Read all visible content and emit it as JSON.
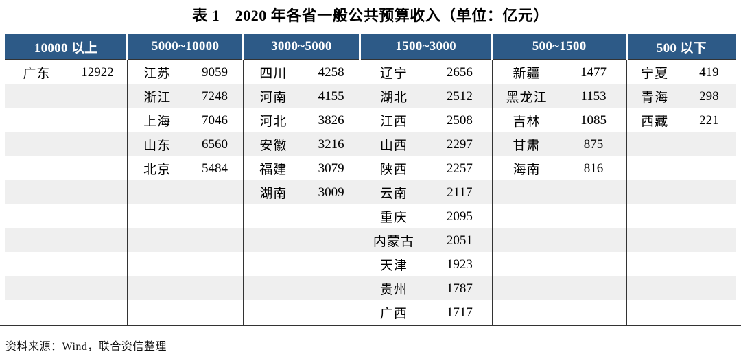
{
  "page": {
    "title": "表 1　2020 年各省一般公共预算收入（单位：亿元）",
    "source_note": "资料来源：Wind，联合资信整理"
  },
  "colors": {
    "header_bg": "#2d5a87",
    "header_text": "#ffffff",
    "alt_row_bg": "#efefef",
    "rule": "#333333"
  },
  "chart_data": {
    "type": "table",
    "title": "2020 年各省一般公共预算收入",
    "table_label": "表 1",
    "unit": "亿元",
    "row_count": 11,
    "column_headers": [
      "10000 以上",
      "5000~10000",
      "3000~5000",
      "1500~3000",
      "500~1500",
      "500 以下"
    ],
    "groups": [
      {
        "header": "10000 以上",
        "rows": [
          [
            "广东",
            "12922"
          ]
        ]
      },
      {
        "header": "5000~10000",
        "rows": [
          [
            "江苏",
            "9059"
          ],
          [
            "浙江",
            "7248"
          ],
          [
            "上海",
            "7046"
          ],
          [
            "山东",
            "6560"
          ],
          [
            "北京",
            "5484"
          ]
        ]
      },
      {
        "header": "3000~5000",
        "rows": [
          [
            "四川",
            "4258"
          ],
          [
            "河南",
            "4155"
          ],
          [
            "河北",
            "3826"
          ],
          [
            "安徽",
            "3216"
          ],
          [
            "福建",
            "3079"
          ],
          [
            "湖南",
            "3009"
          ]
        ]
      },
      {
        "header": "1500~3000",
        "rows": [
          [
            "辽宁",
            "2656"
          ],
          [
            "湖北",
            "2512"
          ],
          [
            "江西",
            "2508"
          ],
          [
            "山西",
            "2297"
          ],
          [
            "陕西",
            "2257"
          ],
          [
            "云南",
            "2117"
          ],
          [
            "重庆",
            "2095"
          ],
          [
            "内蒙古",
            "2051"
          ],
          [
            "天津",
            "1923"
          ],
          [
            "贵州",
            "1787"
          ],
          [
            "广西",
            "1717"
          ]
        ]
      },
      {
        "header": "500~1500",
        "rows": [
          [
            "新疆",
            "1477"
          ],
          [
            "黑龙江",
            "1153"
          ],
          [
            "吉林",
            "1085"
          ],
          [
            "甘肃",
            "875"
          ],
          [
            "海南",
            "816"
          ]
        ]
      },
      {
        "header": "500 以下",
        "rows": [
          [
            "宁夏",
            "419"
          ],
          [
            "青海",
            "298"
          ],
          [
            "西藏",
            "221"
          ]
        ]
      }
    ]
  }
}
